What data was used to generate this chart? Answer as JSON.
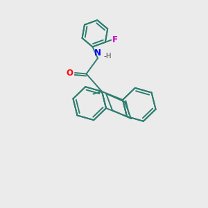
{
  "bg_color": "#ebebeb",
  "bond_color": "#2d7d6e",
  "N_color": "#0000ff",
  "O_color": "#ff0000",
  "F_color": "#cc00cc",
  "lw": 1.4,
  "xlim": [
    0,
    10
  ],
  "ylim": [
    0,
    10
  ]
}
